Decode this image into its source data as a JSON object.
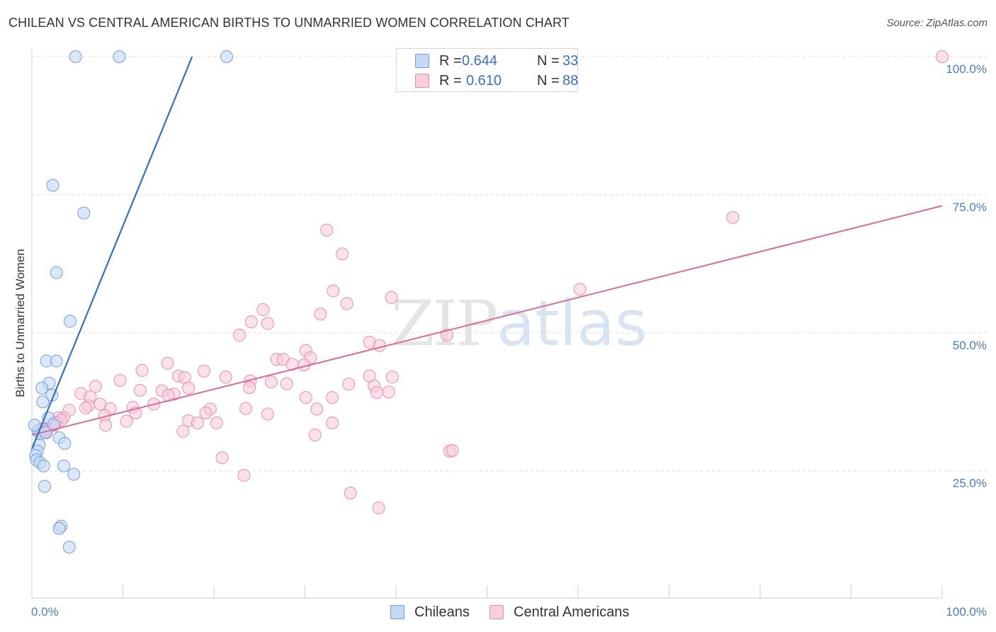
{
  "title": "CHILEAN VS CENTRAL AMERICAN BIRTHS TO UNMARRIED WOMEN CORRELATION CHART",
  "source": "Source: ZipAtlas.com",
  "watermark": {
    "zip": "ZIP",
    "atlas": "atlas"
  },
  "colors": {
    "blue_fill": "#c5d9f5",
    "blue_stroke": "#6f9fe0",
    "blue_line": "#2f6fcf",
    "pink_fill": "#f9cddc",
    "pink_stroke": "#e58fac",
    "pink_line": "#e06a95",
    "tick_text": "#4a7cc9",
    "grid": "#dddddd"
  },
  "legend": [
    {
      "series": "Chileans",
      "r_label": "R =",
      "r_value": "0.644",
      "n_label": "N =",
      "n_value": "33"
    },
    {
      "series": "Central Americans",
      "r_label": "R =",
      "r_value": "0.610",
      "n_label": "N =",
      "n_value": "88"
    }
  ],
  "chart_data": {
    "type": "scatter",
    "title": "CHILEAN VS CENTRAL AMERICAN BIRTHS TO UNMARRIED WOMEN CORRELATION CHART",
    "xlabel": "",
    "ylabel": "Births to Unmarried Women",
    "xlim": [
      0,
      100
    ],
    "ylim": [
      2,
      100
    ],
    "x_tick_labels": [
      "0.0%",
      "100.0%"
    ],
    "y_ticks": [
      25,
      50,
      75,
      100
    ],
    "y_tick_labels": [
      "25.0%",
      "50.0%",
      "75.0%",
      "100.0%"
    ],
    "grid": true,
    "series": [
      {
        "name": "Chileans",
        "r": 0.644,
        "n": 33,
        "trend": [
          [
            0.0,
            29.0
          ],
          [
            17.6,
            100.0
          ]
        ],
        "points": [
          [
            4.8,
            100.0
          ],
          [
            9.6,
            100.0
          ],
          [
            21.4,
            100.0
          ],
          [
            2.3,
            76.7
          ],
          [
            5.7,
            71.7
          ],
          [
            2.7,
            60.9
          ],
          [
            4.2,
            52.1
          ],
          [
            1.6,
            44.9
          ],
          [
            2.7,
            44.9
          ],
          [
            1.9,
            40.9
          ],
          [
            1.1,
            40.0
          ],
          [
            2.2,
            38.7
          ],
          [
            1.2,
            37.5
          ],
          [
            1.8,
            34.6
          ],
          [
            2.4,
            33.4
          ],
          [
            0.7,
            32.3
          ],
          [
            0.9,
            31.7
          ],
          [
            1.5,
            32.0
          ],
          [
            3.0,
            31.0
          ],
          [
            3.6,
            30.0
          ],
          [
            0.8,
            29.7
          ],
          [
            0.6,
            28.6
          ],
          [
            0.4,
            27.8
          ],
          [
            0.5,
            27.0
          ],
          [
            0.9,
            26.5
          ],
          [
            1.3,
            25.9
          ],
          [
            3.5,
            25.9
          ],
          [
            4.6,
            24.4
          ],
          [
            1.4,
            22.2
          ],
          [
            3.2,
            15.0
          ],
          [
            3.0,
            14.6
          ],
          [
            4.1,
            11.2
          ],
          [
            0.3,
            33.3
          ]
        ]
      },
      {
        "name": "Central Americans",
        "r": 0.61,
        "n": 88,
        "trend": [
          [
            0.0,
            31.5
          ],
          [
            100.0,
            73.0
          ]
        ],
        "points": [
          [
            100.0,
            100.0
          ],
          [
            77.0,
            70.9
          ],
          [
            32.4,
            68.6
          ],
          [
            34.1,
            64.3
          ],
          [
            60.2,
            57.9
          ],
          [
            33.1,
            57.6
          ],
          [
            39.5,
            56.4
          ],
          [
            34.6,
            55.3
          ],
          [
            25.4,
            54.2
          ],
          [
            31.7,
            53.4
          ],
          [
            24.1,
            52.0
          ],
          [
            25.9,
            51.7
          ],
          [
            45.6,
            49.6
          ],
          [
            22.8,
            49.6
          ],
          [
            37.1,
            48.3
          ],
          [
            38.2,
            47.7
          ],
          [
            30.1,
            46.8
          ],
          [
            30.6,
            45.5
          ],
          [
            26.9,
            45.2
          ],
          [
            27.6,
            45.2
          ],
          [
            28.6,
            44.3
          ],
          [
            29.9,
            44.2
          ],
          [
            14.9,
            44.5
          ],
          [
            12.1,
            43.2
          ],
          [
            18.9,
            43.1
          ],
          [
            37.1,
            42.2
          ],
          [
            16.1,
            42.2
          ],
          [
            21.3,
            42.0
          ],
          [
            39.6,
            42.0
          ],
          [
            16.8,
            41.9
          ],
          [
            9.7,
            41.4
          ],
          [
            24.0,
            41.3
          ],
          [
            26.3,
            41.1
          ],
          [
            28.0,
            40.8
          ],
          [
            34.8,
            40.7
          ],
          [
            7.0,
            40.3
          ],
          [
            37.6,
            40.4
          ],
          [
            23.9,
            40.1
          ],
          [
            17.2,
            40.0
          ],
          [
            11.9,
            39.6
          ],
          [
            14.3,
            39.5
          ],
          [
            5.4,
            39.0
          ],
          [
            37.9,
            39.2
          ],
          [
            39.2,
            39.3
          ],
          [
            15.6,
            38.9
          ],
          [
            15.0,
            38.7
          ],
          [
            6.4,
            38.4
          ],
          [
            30.1,
            38.3
          ],
          [
            33.0,
            38.3
          ],
          [
            7.5,
            37.1
          ],
          [
            13.4,
            37.1
          ],
          [
            6.2,
            36.8
          ],
          [
            11.1,
            36.5
          ],
          [
            8.6,
            36.3
          ],
          [
            5.9,
            36.4
          ],
          [
            23.5,
            36.3
          ],
          [
            19.6,
            36.2
          ],
          [
            31.3,
            36.2
          ],
          [
            4.1,
            36.0
          ],
          [
            11.4,
            35.5
          ],
          [
            19.1,
            35.5
          ],
          [
            25.9,
            35.3
          ],
          [
            8.0,
            35.0
          ],
          [
            3.5,
            34.7
          ],
          [
            2.9,
            34.6
          ],
          [
            3.2,
            34.2
          ],
          [
            17.2,
            34.1
          ],
          [
            10.4,
            34.0
          ],
          [
            18.2,
            33.7
          ],
          [
            2.6,
            33.8
          ],
          [
            20.3,
            33.7
          ],
          [
            33.0,
            33.7
          ],
          [
            2.1,
            33.5
          ],
          [
            2.4,
            33.2
          ],
          [
            8.1,
            33.3
          ],
          [
            1.6,
            32.6
          ],
          [
            1.0,
            32.6
          ],
          [
            1.4,
            32.4
          ],
          [
            16.6,
            32.2
          ],
          [
            31.1,
            31.5
          ],
          [
            20.9,
            27.4
          ],
          [
            45.9,
            28.6
          ],
          [
            46.2,
            28.7
          ],
          [
            23.3,
            24.2
          ],
          [
            35.0,
            21.0
          ],
          [
            38.1,
            18.3
          ],
          [
            1.6,
            31.9
          ],
          [
            1.2,
            32.1
          ]
        ]
      }
    ]
  }
}
